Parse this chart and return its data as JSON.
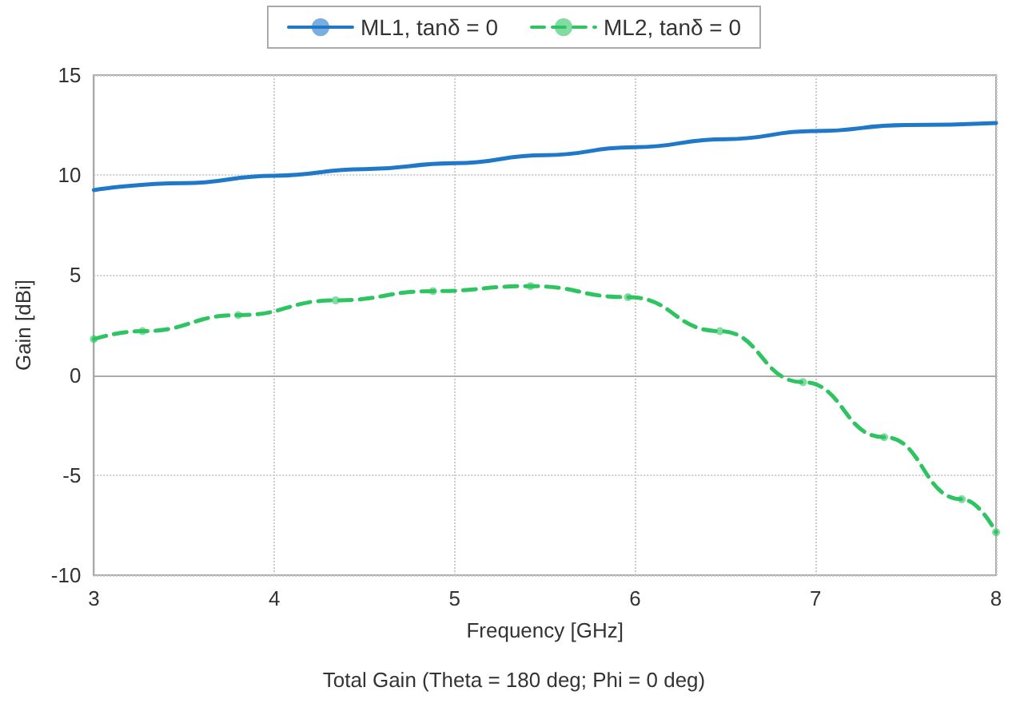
{
  "chart_data": {
    "type": "line",
    "title": "Total Gain (Theta = 180 deg; Phi = 0 deg)",
    "xlabel": "Frequency [GHz]",
    "ylabel": "Gain [dBi]",
    "xlim": [
      3,
      8
    ],
    "xticks": [
      3,
      4,
      5,
      6,
      7,
      8
    ],
    "ylim": [
      -10,
      15
    ],
    "yticks": [
      -10,
      -5,
      0,
      5,
      10,
      15
    ],
    "grid": true,
    "legend": "top",
    "series": [
      {
        "name": "ML1, tanδ = 0",
        "color": "#1f78c8",
        "line_style": "solid",
        "marker": "none",
        "x": [
          3,
          3.5,
          4,
          4.5,
          5,
          5.5,
          6,
          6.5,
          7,
          7.5,
          8
        ],
        "values": [
          9.25,
          9.6,
          9.97,
          10.3,
          10.6,
          11.0,
          11.4,
          11.8,
          12.2,
          12.5,
          12.6
        ]
      },
      {
        "name": "ML2, tanδ = 0",
        "color": "#2ec462",
        "line_style": "dashed",
        "marker": "circle",
        "x": [
          3,
          3.27,
          3.8,
          4.34,
          4.88,
          5.42,
          5.96,
          6.47,
          6.93,
          7.38,
          7.81,
          8
        ],
        "values": [
          1.8,
          2.2,
          3.0,
          3.74,
          4.2,
          4.45,
          3.9,
          2.2,
          -0.35,
          -3.1,
          -6.2,
          -7.85
        ]
      }
    ]
  }
}
